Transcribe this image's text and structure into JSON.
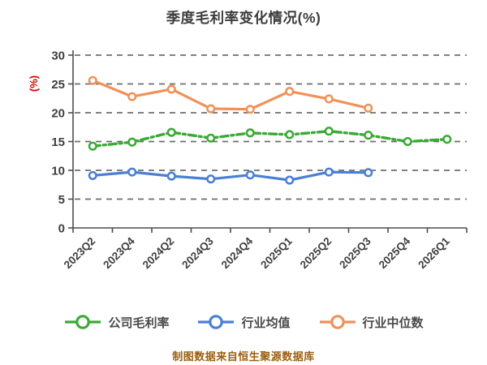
{
  "title": "季度毛利率变化情况(%)",
  "footer_note": "制图数据来自恒生聚源数据库",
  "colors": {
    "title_text": "#3d3d3d",
    "tick_text": "#3f3f3f",
    "axis_line": "#4d4d4d",
    "gridline": "#6e6e6e",
    "ylabel_red": "#d40000",
    "footer_amber": "#9b5e0f",
    "series_green": "#3aaa35",
    "series_blue": "#4a7fd4",
    "series_orange": "#f0915a",
    "marker_fill": "#ffffff"
  },
  "chart_data": {
    "type": "line",
    "title": "季度毛利率变化情况(%)",
    "xlabel": "",
    "ylabel": "(%)",
    "ylim": [
      0,
      30
    ],
    "yticks": [
      0,
      5,
      10,
      15,
      20,
      25,
      30
    ],
    "grid": "horizontal-dashed",
    "legend_position": "bottom",
    "categories": [
      "2023Q2",
      "2023Q4",
      "2024Q2",
      "2024Q3",
      "2024Q4",
      "2025Q1",
      "2025Q2",
      "2025Q3",
      "2025Q4",
      "2026Q1"
    ],
    "series": [
      {
        "name": "公司毛利率",
        "color": "#3aaa35",
        "line_style": "dashed",
        "values": [
          14.2,
          14.9,
          16.6,
          15.6,
          16.5,
          16.2,
          16.8,
          16.1,
          15.0,
          15.4
        ]
      },
      {
        "name": "行业均值",
        "color": "#4a7fd4",
        "line_style": "solid",
        "values": [
          9.1,
          9.7,
          9.0,
          8.5,
          9.2,
          8.3,
          9.7,
          9.6,
          null,
          null
        ]
      },
      {
        "name": "行业中位数",
        "color": "#f0915a",
        "line_style": "solid",
        "values": [
          25.6,
          22.8,
          24.1,
          20.7,
          20.6,
          23.7,
          22.4,
          20.8,
          null,
          null
        ]
      }
    ]
  }
}
